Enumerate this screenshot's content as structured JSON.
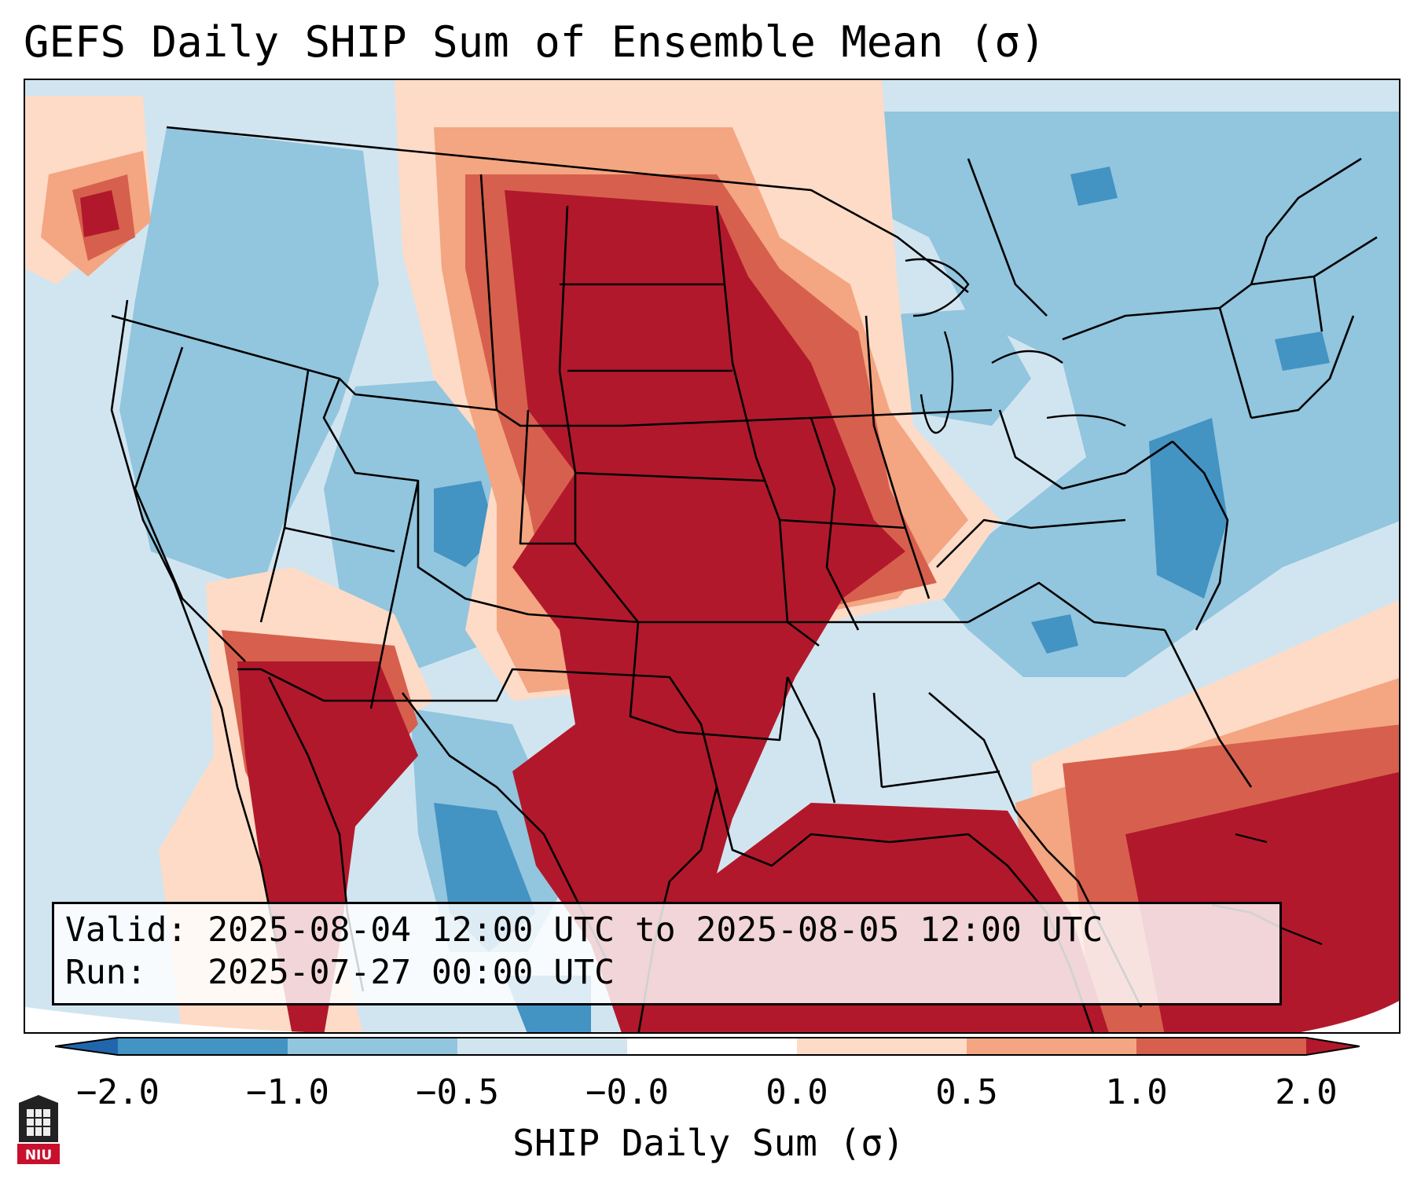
{
  "title": "GEFS Daily SHIP Sum of Ensemble Mean (σ)",
  "info": {
    "valid_line": "Valid: 2025-08-04 12:00 UTC to 2025-08-05 12:00 UTC",
    "run_line": "Run:   2025-07-27 00:00 UTC"
  },
  "colorbar": {
    "label": "SHIP Daily Sum (σ)",
    "ticks": [
      "−2.0",
      "−1.0",
      "−0.5",
      "−0.0",
      "0.0",
      "0.5",
      "1.0",
      "2.0"
    ],
    "colors": [
      "#2166ac",
      "#4393c3",
      "#92c5de",
      "#d1e5f0",
      "#ffffff",
      "#fddbc7",
      "#f4a582",
      "#d6604d",
      "#b2182b"
    ]
  },
  "logo": {
    "text": "NIU",
    "color": "#c8102e"
  }
}
